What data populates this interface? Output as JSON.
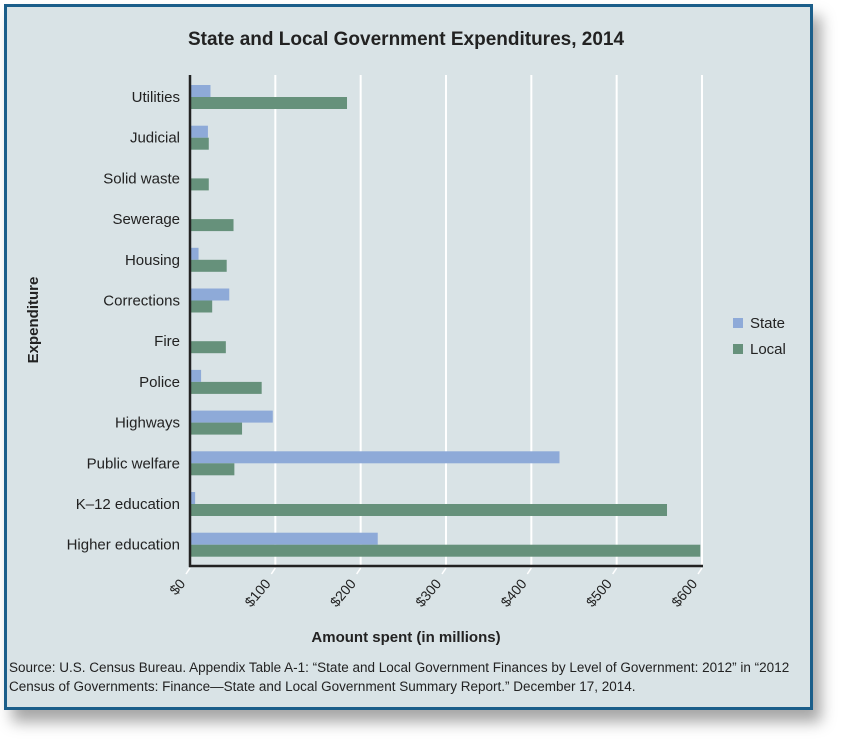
{
  "chart_data": {
    "type": "bar",
    "orientation": "horizontal",
    "title": "State and Local Government Expenditures, 2014",
    "xlabel": "Amount spent (in millions)",
    "ylabel": "Expenditure",
    "xlim": [
      0,
      600
    ],
    "x_ticks": [
      "$0",
      "$100",
      "$200",
      "$300",
      "$400",
      "$500",
      "$600"
    ],
    "grid": "vertical",
    "legend_position": "right",
    "categories": [
      "Utilities",
      "Judicial",
      "Solid waste",
      "Sewerage",
      "Housing",
      "Corrections",
      "Fire",
      "Police",
      "Highways",
      "Public welfare",
      "K–12 education",
      "Higher education"
    ],
    "series": [
      {
        "name": "State",
        "color": "#8eaad8",
        "values": [
          24,
          21,
          0,
          0,
          10,
          46,
          0,
          13,
          97,
          433,
          6,
          220
        ]
      },
      {
        "name": "Local",
        "color": "#66917b",
        "values": [
          184,
          22,
          22,
          51,
          43,
          26,
          42,
          84,
          61,
          52,
          559,
          598
        ]
      }
    ]
  },
  "source": "Source: U.S. Census Bureau. Appendix Table A-1: “State and Local Government Finances by Level of Government: 2012” in “2012 Census of Governments: Finance—State and Local Government Summary Report.” December 17, 2014."
}
